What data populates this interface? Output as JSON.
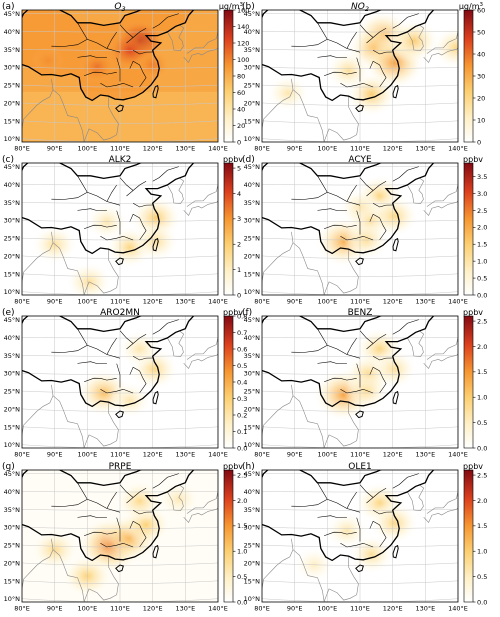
{
  "chart_data": [
    {
      "type": "heatmap",
      "label": "(a)",
      "title": "O",
      "title_sub": "3",
      "title_italic": true,
      "unit": "μg/m",
      "unit_sup": "3",
      "colorbar_ticks": [
        0,
        20,
        40,
        60,
        80,
        100,
        120,
        140,
        160
      ],
      "vmin": 0,
      "vmax": 160,
      "background_level": 0.52,
      "hotspots": [
        {
          "lon": 116.0,
          "lat": 37.5,
          "intensity": 0.35
        },
        {
          "lon": 113.0,
          "lat": 35.0,
          "intensity": 0.25
        },
        {
          "lon": 103.0,
          "lat": 30.5,
          "intensity": 0.15
        },
        {
          "lon": 88.0,
          "lat": 32.0,
          "intensity": 0.08
        },
        {
          "lon": 120.0,
          "lat": 31.0,
          "intensity": 0.12
        }
      ]
    },
    {
      "type": "heatmap",
      "label": "(b)",
      "title": "NO",
      "title_sub": "2",
      "title_italic": true,
      "unit": "μg/m",
      "unit_sup": "3",
      "colorbar_ticks": [
        0,
        10,
        20,
        30,
        40,
        50,
        60
      ],
      "vmin": 0,
      "vmax": 60,
      "background_level": 0.0,
      "hotspots": [
        {
          "lon": 117.0,
          "lat": 39.0,
          "intensity": 0.5
        },
        {
          "lon": 114.5,
          "lat": 35.5,
          "intensity": 0.45
        },
        {
          "lon": 120.5,
          "lat": 31.5,
          "intensity": 0.55
        },
        {
          "lon": 113.5,
          "lat": 23.0,
          "intensity": 0.4
        },
        {
          "lon": 106.5,
          "lat": 29.5,
          "intensity": 0.3
        },
        {
          "lon": 126.5,
          "lat": 37.5,
          "intensity": 0.4
        },
        {
          "lon": 139.5,
          "lat": 35.5,
          "intensity": 0.35
        },
        {
          "lon": 88.0,
          "lat": 23.0,
          "intensity": 0.25
        }
      ]
    },
    {
      "type": "heatmap",
      "label": "(c)",
      "title": "ALK2",
      "unit": "ppbv",
      "colorbar_ticks": [
        0,
        1,
        2,
        3,
        4,
        5
      ],
      "vmin": 0,
      "vmax": 5.2,
      "background_level": 0.0,
      "hotspots": [
        {
          "lon": 121.0,
          "lat": 31.0,
          "intensity": 0.4
        },
        {
          "lon": 113.0,
          "lat": 23.0,
          "intensity": 0.35
        },
        {
          "lon": 106.0,
          "lat": 30.0,
          "intensity": 0.25
        },
        {
          "lon": 121.0,
          "lat": 24.5,
          "intensity": 0.3
        },
        {
          "lon": 90.0,
          "lat": 23.5,
          "intensity": 0.3
        },
        {
          "lon": 100.5,
          "lat": 13.5,
          "intensity": 0.3
        }
      ]
    },
    {
      "type": "heatmap",
      "label": "(d)",
      "title": "ACYE",
      "unit": "ppbv",
      "colorbar_ticks": [
        0.0,
        0.5,
        1.0,
        1.5,
        2.0,
        2.5,
        3.0,
        3.5
      ],
      "vmin": 0,
      "vmax": 3.9,
      "background_level": 0.0,
      "hotspots": [
        {
          "lon": 105.0,
          "lat": 24.5,
          "intensity": 0.5
        },
        {
          "lon": 116.0,
          "lat": 37.0,
          "intensity": 0.35
        },
        {
          "lon": 113.0,
          "lat": 30.5,
          "intensity": 0.35
        },
        {
          "lon": 120.5,
          "lat": 31.5,
          "intensity": 0.35
        },
        {
          "lon": 112.0,
          "lat": 25.0,
          "intensity": 0.3
        },
        {
          "lon": 110.0,
          "lat": 34.0,
          "intensity": 0.25
        }
      ]
    },
    {
      "type": "heatmap",
      "label": "(e)",
      "title": "ARO2MN",
      "unit": "ppbv",
      "colorbar_ticks": [
        0.0,
        0.1,
        0.2,
        0.3,
        0.4,
        0.5,
        0.6,
        0.7,
        0.8
      ],
      "vmin": 0,
      "vmax": 0.8,
      "background_level": 0.0,
      "hotspots": [
        {
          "lon": 105.0,
          "lat": 25.0,
          "intensity": 0.45
        },
        {
          "lon": 120.5,
          "lat": 31.5,
          "intensity": 0.35
        },
        {
          "lon": 116.0,
          "lat": 37.0,
          "intensity": 0.25
        },
        {
          "lon": 113.0,
          "lat": 23.0,
          "intensity": 0.25
        }
      ]
    },
    {
      "type": "heatmap",
      "label": "(f)",
      "title": "BENZ",
      "unit": "ppbv",
      "colorbar_ticks": [
        0.0,
        0.5,
        1.0,
        1.5,
        2.0,
        2.5
      ],
      "vmin": 0,
      "vmax": 2.6,
      "background_level": 0.0,
      "hotspots": [
        {
          "lon": 105.0,
          "lat": 24.5,
          "intensity": 0.55
        },
        {
          "lon": 116.0,
          "lat": 37.0,
          "intensity": 0.35
        },
        {
          "lon": 112.5,
          "lat": 30.0,
          "intensity": 0.35
        },
        {
          "lon": 120.5,
          "lat": 31.5,
          "intensity": 0.3
        },
        {
          "lon": 112.0,
          "lat": 25.5,
          "intensity": 0.3
        }
      ]
    },
    {
      "type": "heatmap",
      "label": "(g)",
      "title": "PRPE",
      "unit": "ppbv",
      "colorbar_ticks": [
        0.0,
        0.5,
        1.0,
        1.5,
        2.0,
        2.5
      ],
      "vmin": 0,
      "vmax": 2.6,
      "background_level": 0.03,
      "hotspots": [
        {
          "lon": 107.0,
          "lat": 25.5,
          "intensity": 0.6
        },
        {
          "lon": 113.0,
          "lat": 27.5,
          "intensity": 0.45
        },
        {
          "lon": 118.0,
          "lat": 31.0,
          "intensity": 0.35
        },
        {
          "lon": 116.0,
          "lat": 37.5,
          "intensity": 0.3
        },
        {
          "lon": 90.0,
          "lat": 24.0,
          "intensity": 0.3
        },
        {
          "lon": 100.0,
          "lat": 17.0,
          "intensity": 0.35
        },
        {
          "lon": 128.0,
          "lat": 38.0,
          "intensity": 0.2
        }
      ]
    },
    {
      "type": "heatmap",
      "label": "(h)",
      "title": "OLE1",
      "unit": "ppbv",
      "colorbar_ticks": [
        0.0,
        0.5,
        1.0,
        1.5,
        2.0,
        2.5
      ],
      "vmin": 0,
      "vmax": 2.6,
      "background_level": 0.0,
      "hotspots": [
        {
          "lon": 116.0,
          "lat": 37.0,
          "intensity": 0.35
        },
        {
          "lon": 120.5,
          "lat": 31.5,
          "intensity": 0.35
        },
        {
          "lon": 113.5,
          "lat": 23.0,
          "intensity": 0.3
        },
        {
          "lon": 106.0,
          "lat": 29.5,
          "intensity": 0.25
        },
        {
          "lon": 96.0,
          "lat": 20.0,
          "intensity": 0.2
        }
      ]
    }
  ],
  "lon_ticks": [
    "80°E",
    "90°E",
    "100°E",
    "110°E",
    "120°E",
    "130°E",
    "140°E"
  ],
  "lat_ticks": [
    "10°N",
    "15°N",
    "20°N",
    "25°N",
    "30°N",
    "35°N",
    "40°N",
    "45°N"
  ],
  "colors": {
    "cmap_low": "#ffffff",
    "cmap_mid1": "#fde79a",
    "cmap_mid2": "#f9a33b",
    "cmap_mid3": "#e34a1f",
    "cmap_high": "#8b0d0d",
    "border": "#000000",
    "grid": "#c8c8c8",
    "coast": "#888888"
  }
}
